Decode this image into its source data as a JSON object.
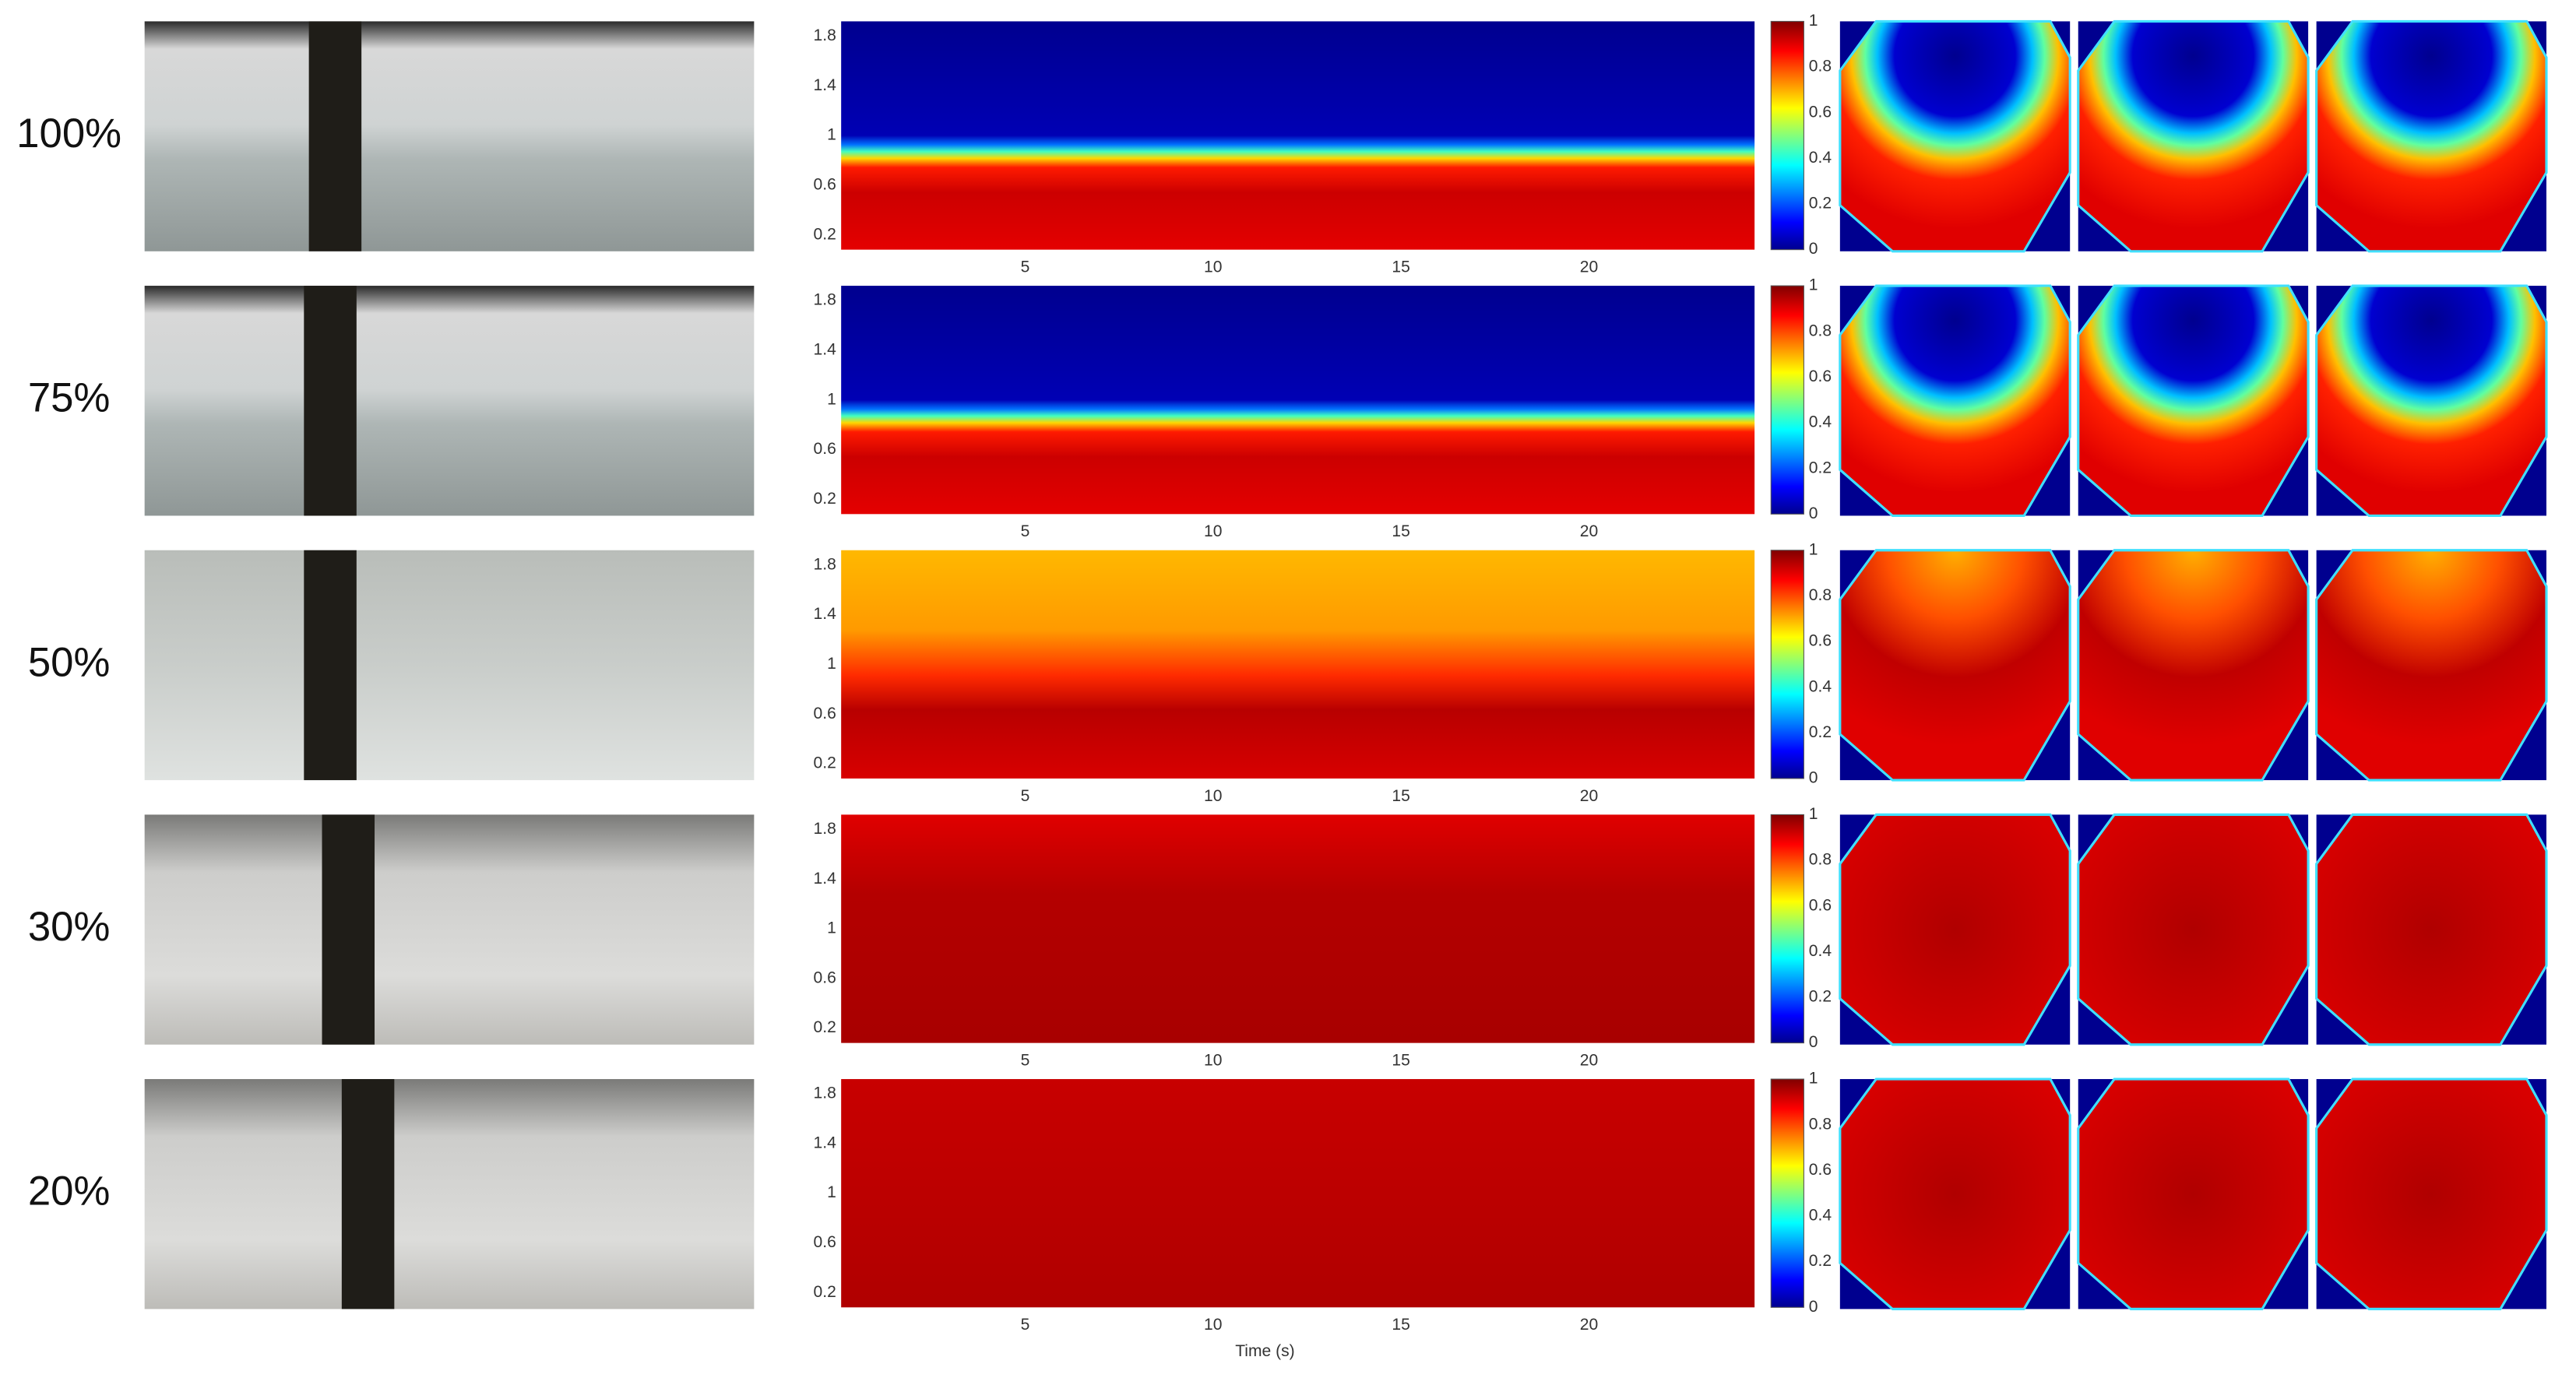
{
  "rows": [
    {
      "label": "100%"
    },
    {
      "label": "75%"
    },
    {
      "label": "50%"
    },
    {
      "label": "30%"
    },
    {
      "label": "20%"
    }
  ],
  "heatmap_axis": {
    "yticks": [
      0.2,
      0.6,
      1,
      1.4,
      1.8
    ],
    "xticks": [
      5,
      10,
      15,
      20
    ],
    "xlabel": "Time (s)"
  },
  "colorbar": {
    "ticks": [
      0,
      0.2,
      0.4,
      0.6,
      0.8,
      1
    ]
  }
}
